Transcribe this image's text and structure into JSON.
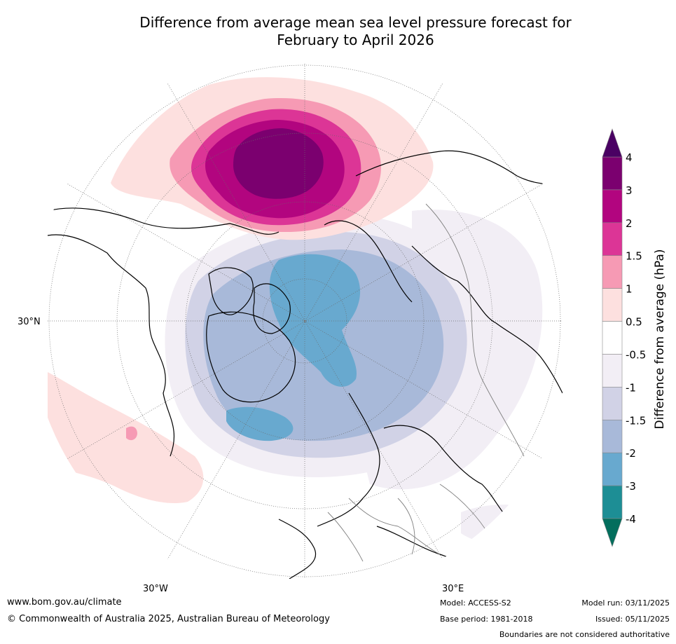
{
  "title": {
    "line1": "Difference from average mean sea level pressure forecast for",
    "line2": "February to April 2026"
  },
  "map": {
    "projection": "north-polar-stereographic",
    "axis_labels": {
      "left": "30°N",
      "bottom_left": "30°W",
      "bottom_right": "30°E"
    }
  },
  "colorbar": {
    "label": "Difference from average (hPa)",
    "ticks": [
      "4",
      "3",
      "2",
      "1.5",
      "1",
      "0.5",
      "-0.5",
      "-1",
      "-1.5",
      "-2",
      "-3",
      "-4"
    ],
    "bins": [
      {
        "from": 3,
        "to": 4,
        "color": "#7b006f"
      },
      {
        "from": 2,
        "to": 3,
        "color": "#b2057f"
      },
      {
        "from": 1.5,
        "to": 2,
        "color": "#dc3596"
      },
      {
        "from": 1,
        "to": 1.5,
        "color": "#f69ab4"
      },
      {
        "from": 0.5,
        "to": 1,
        "color": "#fde0df"
      },
      {
        "from": -0.5,
        "to": 0.5,
        "color": "#ffffff"
      },
      {
        "from": -1,
        "to": -0.5,
        "color": "#f2eef5"
      },
      {
        "from": -1.5,
        "to": -1,
        "color": "#d1d2e6"
      },
      {
        "from": -2,
        "to": -1.5,
        "color": "#a8b9d9"
      },
      {
        "from": -3,
        "to": -2,
        "color": "#68a9cf"
      },
      {
        "from": -4,
        "to": -3,
        "color": "#1d8e95"
      }
    ],
    "over_color": "#4a0163",
    "under_color": "#036e5d"
  },
  "footer": {
    "website": "www.bom.gov.au/climate",
    "copyright": "© Commonwealth of Australia 2025, Australian Bureau of Meteorology",
    "model": "Model: ACCESS-S2",
    "base_period": "Base period: 1981-2018",
    "model_run": "Model run: 03/11/2025",
    "issued": "Issued: 05/11/2025",
    "disclaimer": "Boundaries are not considered authoritative"
  }
}
